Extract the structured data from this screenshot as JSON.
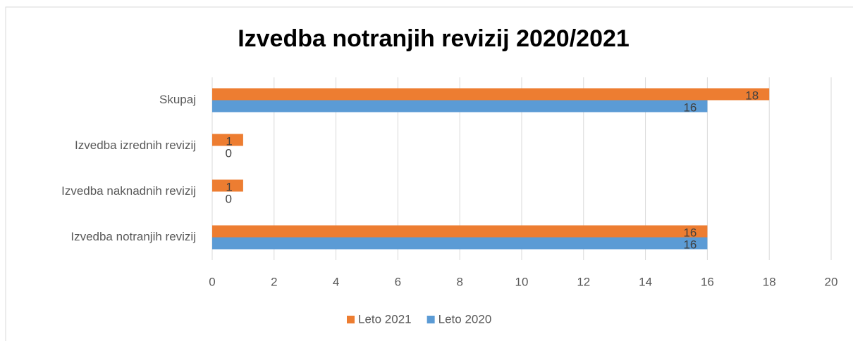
{
  "chart_data": {
    "type": "hbar",
    "title": "Izvedba notranjih revizij 2020/2021",
    "categories": [
      "Skupaj",
      "Izvedba izrednih revizij",
      "Izvedba naknadnih revizij",
      "Izvedba notranjih revizij"
    ],
    "series": [
      {
        "name": "Leto 2021",
        "color": "#ed7d31",
        "values": [
          18,
          1,
          1,
          16
        ]
      },
      {
        "name": "Leto 2020",
        "color": "#5b9bd5",
        "values": [
          16,
          0,
          0,
          16
        ]
      }
    ],
    "xlim": [
      0,
      20
    ],
    "xticks": [
      0,
      2,
      4,
      6,
      8,
      10,
      12,
      14,
      16,
      18,
      20
    ],
    "grid": true,
    "legend": "bottom"
  }
}
